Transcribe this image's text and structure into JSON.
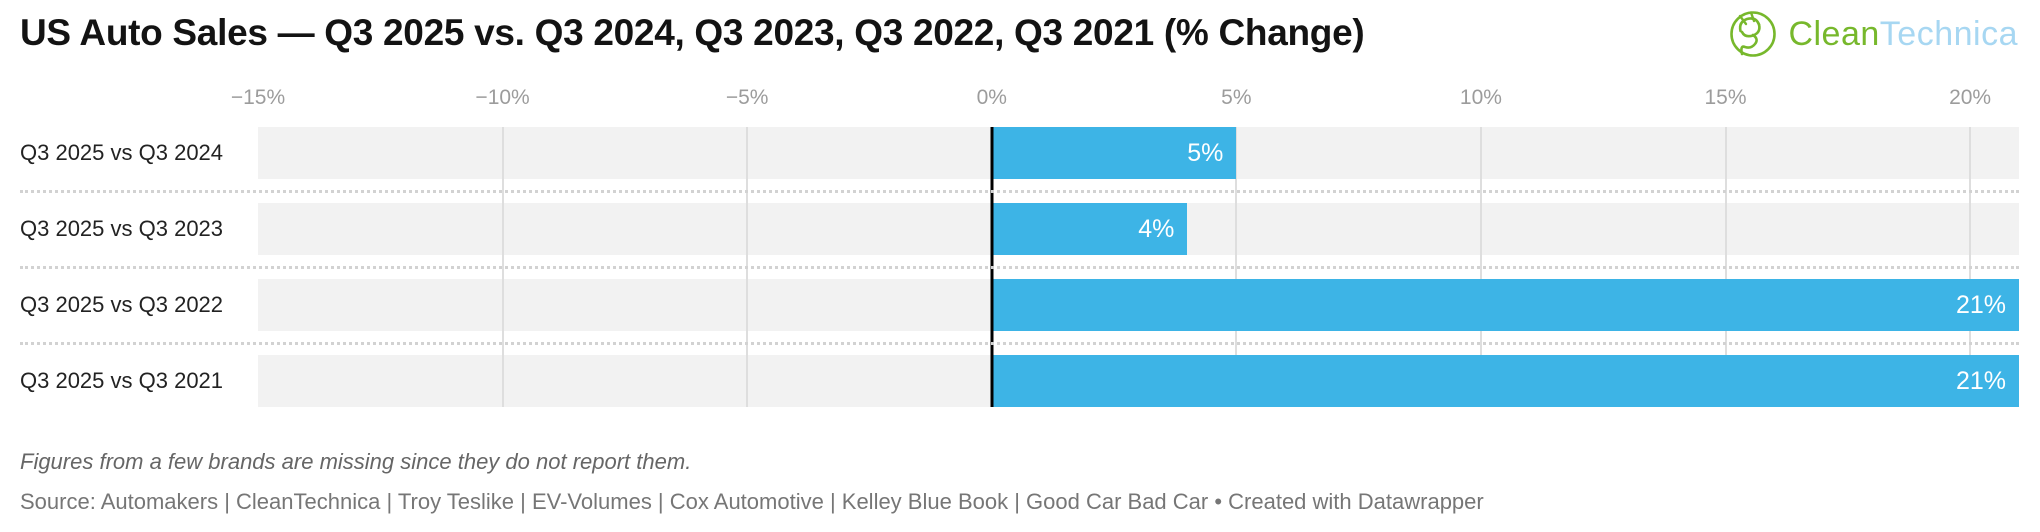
{
  "header": {
    "title": "US Auto Sales — Q3 2025 vs. Q3 2024, Q3 2023, Q3 2022, Q3 2021 (% Change)",
    "logo": {
      "clean": "Clean",
      "technica": "Technica",
      "green": "#77b82c",
      "blue": "#a7d7f2"
    }
  },
  "chart_data": {
    "type": "bar",
    "orientation": "horizontal",
    "title": "US Auto Sales — Q3 2025 vs. Q3 2024, Q3 2023, Q3 2022, Q3 2021 (% Change)",
    "xlabel": "",
    "ylabel": "",
    "categories": [
      "Q3 2025 vs Q3 2024",
      "Q3 2025 vs Q3 2023",
      "Q3 2025 vs Q3 2022",
      "Q3 2025 vs Q3 2021"
    ],
    "values": [
      5,
      4,
      21,
      21
    ],
    "value_labels": [
      "5%",
      "4%",
      "21%",
      "21%"
    ],
    "xlim": [
      -15,
      21
    ],
    "ticks": [
      -15,
      -10,
      -5,
      0,
      5,
      10,
      15,
      20
    ],
    "tick_labels": [
      "−15%",
      "−10%",
      "−5%",
      "0%",
      "5%",
      "10%",
      "15%",
      "20%"
    ],
    "grid": true,
    "legend": "none",
    "bar_color": "#3db4e6",
    "band_color": "#f2f2f2",
    "gridline_color": "#dedede",
    "zero_line_color": "#000000",
    "value_label_color": "#ffffff"
  },
  "footer": {
    "note": "Figures from a few brands are missing since they do not report them.",
    "source": "Source: Automakers | CleanTechnica | Troy Teslike | EV-Volumes | Cox Automotive | Kelley Blue Book | Good Car Bad Car • Created with Datawrapper"
  }
}
